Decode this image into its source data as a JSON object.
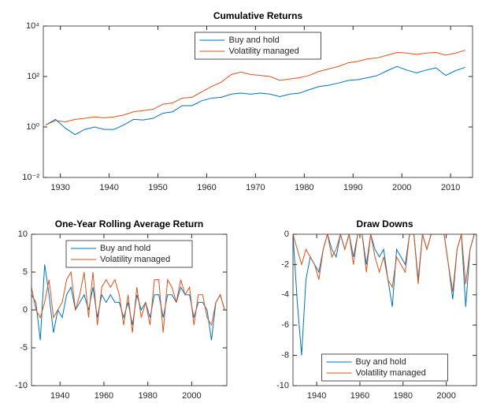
{
  "chart_data": [
    {
      "type": "line",
      "title": "Cumulative Returns",
      "log_scale": "y",
      "legend": "upper center",
      "x": [
        1927,
        1929,
        1931,
        1933,
        1935,
        1937,
        1939,
        1941,
        1943,
        1945,
        1947,
        1949,
        1951,
        1953,
        1955,
        1957,
        1959,
        1961,
        1963,
        1965,
        1967,
        1969,
        1971,
        1973,
        1975,
        1977,
        1979,
        1981,
        1983,
        1985,
        1987,
        1989,
        1991,
        1993,
        1995,
        1997,
        1999,
        2001,
        2003,
        2005,
        2007,
        2009,
        2011,
        2013
      ],
      "series": [
        {
          "name": "Buy and hold",
          "color": "#0072bd",
          "values": [
            1.2,
            2.0,
            0.9,
            0.5,
            0.8,
            1.0,
            0.8,
            0.8,
            1.2,
            2.0,
            1.9,
            2.2,
            3.5,
            4.0,
            7,
            7,
            11,
            14,
            15,
            20,
            22,
            20,
            22,
            20,
            16,
            20,
            22,
            30,
            40,
            45,
            55,
            70,
            75,
            90,
            110,
            170,
            250,
            180,
            140,
            180,
            220,
            110,
            170,
            230
          ]
        },
        {
          "name": "Volatility managed",
          "color": "#d95319",
          "values": [
            1.2,
            1.8,
            1.6,
            2.0,
            2.2,
            2.5,
            2.3,
            2.5,
            3,
            4,
            4.5,
            5,
            8,
            9,
            14,
            15,
            25,
            40,
            60,
            120,
            150,
            120,
            110,
            100,
            70,
            80,
            90,
            110,
            160,
            200,
            250,
            350,
            400,
            500,
            550,
            700,
            900,
            850,
            750,
            850,
            900,
            700,
            850,
            1100
          ]
        }
      ],
      "xlim": [
        1926.5,
        2014.5
      ],
      "xticks": [
        1930,
        1940,
        1950,
        1960,
        1970,
        1980,
        1990,
        2000,
        2010
      ],
      "ylim": [
        0.01,
        10000
      ],
      "yticks": [
        {
          "value": 0.01,
          "label": "10⁻²"
        },
        {
          "value": 1,
          "label": "10⁰"
        },
        {
          "value": 100,
          "label": "10²"
        },
        {
          "value": 10000,
          "label": "10⁴"
        }
      ]
    },
    {
      "type": "line",
      "title": "One-Year Rolling Average Return",
      "legend": "upper center",
      "x": [
        1927,
        1929,
        1931,
        1933,
        1935,
        1937,
        1939,
        1941,
        1943,
        1945,
        1947,
        1949,
        1951,
        1953,
        1955,
        1957,
        1959,
        1961,
        1963,
        1965,
        1967,
        1969,
        1971,
        1973,
        1975,
        1977,
        1979,
        1981,
        1983,
        1985,
        1987,
        1989,
        1991,
        1993,
        1995,
        1997,
        1999,
        2001,
        2003,
        2005,
        2007,
        2009,
        2011,
        2013,
        2015
      ],
      "series": [
        {
          "name": "Buy and hold",
          "color": "#0072bd",
          "values": [
            2,
            1,
            -4,
            6,
            2,
            -3,
            0,
            -1,
            2,
            3,
            0,
            1,
            2,
            0,
            3,
            -1,
            2,
            1,
            2,
            1,
            1,
            -1,
            1,
            -2,
            2,
            0,
            1,
            -1,
            2,
            2,
            -1,
            2,
            2,
            1,
            3,
            2,
            2,
            -1,
            1,
            1,
            0,
            -4,
            1,
            2,
            0
          ]
        },
        {
          "name": "Volatility managed",
          "color": "#d95319",
          "values": [
            3,
            0,
            -1,
            1,
            4,
            -1,
            0,
            1,
            4,
            5,
            0,
            2,
            5,
            -1,
            5,
            -2,
            3,
            4,
            3,
            4,
            2,
            -2,
            2,
            -3,
            3,
            -1,
            1,
            -2,
            4,
            4,
            -3,
            4,
            3,
            1,
            4,
            2,
            3,
            -2,
            2,
            2,
            -1,
            -2,
            1,
            2,
            0
          ]
        }
      ],
      "xlim": [
        1927,
        2016
      ],
      "xticks": [
        1940,
        1960,
        1980,
        2000
      ],
      "ylim": [
        -10,
        10
      ],
      "yticks": [
        -10,
        -5,
        0,
        5,
        10
      ]
    },
    {
      "type": "line",
      "title": "Draw Downs",
      "legend": "lower center",
      "x": [
        1929,
        1931,
        1933,
        1935,
        1937,
        1939,
        1941,
        1943,
        1945,
        1947,
        1949,
        1951,
        1953,
        1955,
        1957,
        1959,
        1961,
        1963,
        1965,
        1967,
        1969,
        1971,
        1973,
        1975,
        1977,
        1979,
        1981,
        1983,
        1985,
        1987,
        1989,
        1991,
        1993,
        1995,
        1997,
        1999,
        2001,
        2003,
        2005,
        2007,
        2009,
        2011,
        2013
      ],
      "series": [
        {
          "name": "Buy and hold",
          "color": "#0072bd",
          "values": [
            0,
            -4.5,
            -8,
            -3,
            -1.5,
            -2,
            -2.5,
            -1,
            0,
            -1,
            -1.5,
            0,
            -1,
            0,
            -1.5,
            0,
            0,
            -2,
            0,
            -1,
            -1.5,
            -1,
            -3,
            -4.8,
            -1,
            -1.5,
            -2,
            0,
            0,
            -3,
            0,
            -1,
            0,
            0,
            0,
            0,
            -2,
            -4.3,
            -1,
            0,
            -4.8,
            -1,
            0
          ]
        },
        {
          "name": "Volatility managed",
          "color": "#d95319",
          "values": [
            0,
            -1,
            -2,
            -1,
            -1.5,
            -2,
            -3,
            -1,
            0,
            -1.5,
            -1,
            0,
            -1,
            0,
            -2,
            0,
            0,
            -2.5,
            0,
            -1.5,
            -2.5,
            -1.5,
            -3,
            -3.5,
            -1.5,
            -2,
            -2.5,
            0,
            0,
            -3.3,
            0,
            -1,
            0,
            0,
            0,
            0,
            -2,
            -3.8,
            -1,
            0,
            -3.3,
            -1,
            0
          ]
        }
      ],
      "xlim": [
        1929,
        2014
      ],
      "xticks": [
        1940,
        1960,
        1980,
        2000
      ],
      "ylim": [
        -10,
        0
      ],
      "yticks": [
        -10,
        -8,
        -6,
        -4,
        -2,
        0
      ]
    }
  ]
}
